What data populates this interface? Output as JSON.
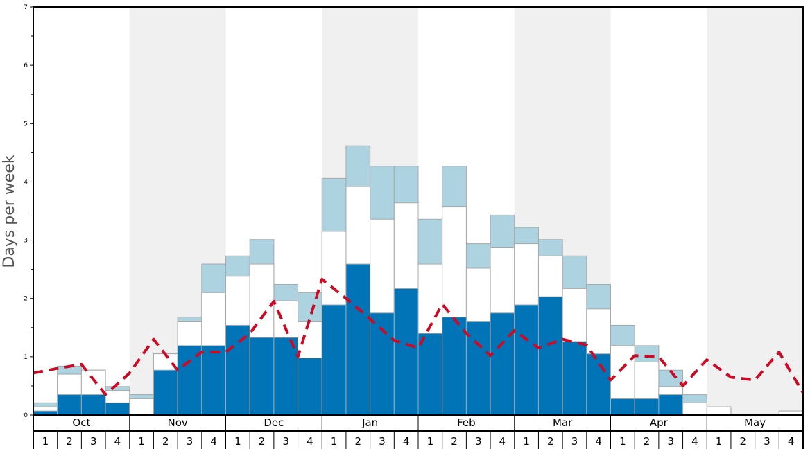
{
  "chart_data": {
    "type": "bar",
    "ylabel": "Days per week",
    "ylim": [
      0,
      7
    ],
    "y_ticks": [
      "0",
      "1",
      "2",
      "3",
      "4",
      "5",
      "6",
      "7"
    ],
    "months": [
      "Oct",
      "Nov",
      "Dec",
      "Jan",
      "Feb",
      "Mar",
      "Apr",
      "May"
    ],
    "week_labels": [
      "1",
      "2",
      "3",
      "4"
    ],
    "colors": {
      "dark": "#0074b7",
      "mid": "#ffffff",
      "light": "#aed3e0",
      "line": "#cc0a24",
      "band": "#f0f0f0",
      "bar_edge": "#a8a8a8"
    },
    "series": [
      {
        "values": [
          0.07,
          0.35,
          0.35,
          0.21,
          0,
          0.77,
          1.19,
          1.19,
          1.54,
          1.33,
          1.33,
          0.98,
          1.89,
          2.59,
          1.75,
          2.17,
          1.4,
          1.68,
          1.61,
          1.75,
          1.89,
          2.03,
          1.26,
          1.05,
          0.28,
          0.28,
          0.35,
          0,
          0,
          0,
          0,
          0
        ]
      },
      {
        "values": [
          0.14,
          0.7,
          0.77,
          0.42,
          0.28,
          1.05,
          1.61,
          2.1,
          2.38,
          2.59,
          1.96,
          1.61,
          3.15,
          3.92,
          3.36,
          3.64,
          2.59,
          3.57,
          2.52,
          2.87,
          2.94,
          2.73,
          2.17,
          1.82,
          1.19,
          0.91,
          0.49,
          0.21,
          0.14,
          0,
          0,
          0.07
        ]
      },
      {
        "values": [
          0.21,
          0.84,
          0.77,
          0.49,
          0.35,
          1.05,
          1.68,
          2.59,
          2.73,
          3.01,
          2.24,
          2.1,
          4.06,
          4.62,
          4.27,
          4.27,
          3.36,
          4.27,
          2.94,
          3.43,
          3.22,
          3.01,
          2.73,
          2.24,
          1.54,
          1.19,
          0.77,
          0.35,
          0.14,
          0,
          0,
          0.07
        ]
      },
      {
        "values": [
          0.72,
          0.8,
          0.87,
          0.35,
          0.72,
          1.3,
          0.77,
          1.08,
          1.08,
          1.4,
          1.95,
          1.0,
          2.33,
          2.0,
          1.65,
          1.28,
          1.15,
          1.9,
          1.4,
          1.02,
          1.45,
          1.15,
          1.3,
          1.2,
          0.6,
          1.02,
          1.0,
          0.5,
          0.95,
          0.65,
          0.6,
          1.08,
          0.38
        ]
      }
    ]
  }
}
